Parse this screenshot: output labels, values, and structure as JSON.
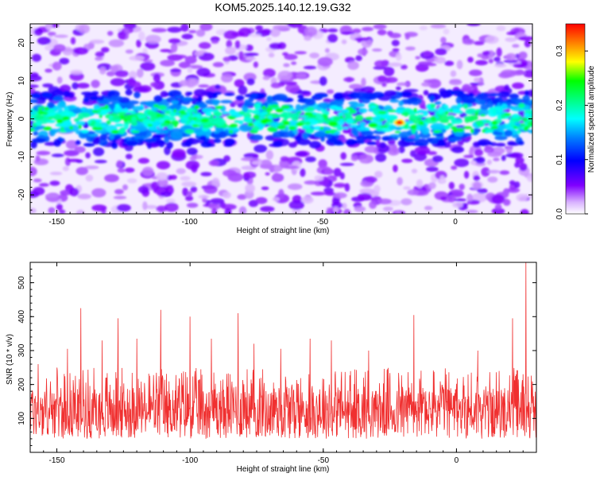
{
  "figure_title": "KOM5.2025.140.12.19.G32",
  "chart_data": [
    {
      "type": "heatmap",
      "title": "KOM5.2025.140.12.19.G32",
      "xlabel": "Height of straight line (km)",
      "ylabel": "Frequency (Hz)",
      "xlim": [
        -160,
        29
      ],
      "ylim": [
        -25,
        25
      ],
      "x_ticks": [
        -150,
        -100,
        -50,
        0
      ],
      "y_ticks": [
        -20,
        -10,
        0,
        10,
        20
      ],
      "colorbar": {
        "label": "Normalized spectral amplitude",
        "range": [
          0.0,
          0.35
        ],
        "ticks": [
          0.0,
          0.1,
          0.2,
          0.3
        ],
        "colormap": [
          "#ffffff",
          "#8000ff",
          "#0000ff",
          "#00ffff",
          "#00ff00",
          "#ffff00",
          "#ff8000",
          "#ff0000"
        ]
      },
      "description_values": {
        "band_center_hz": 0,
        "band_halfwidth_hz": 7,
        "peak_x_km": -21,
        "peak_y_hz": -1,
        "peak_amplitude": 0.35
      },
      "grid": false
    },
    {
      "type": "line",
      "xlabel": "Height of straight line (km)",
      "ylabel": "SNR (10 * v/v)",
      "xlim": [
        -160,
        30
      ],
      "ylim": [
        0,
        560
      ],
      "x_ticks": [
        -150,
        -100,
        -50,
        0
      ],
      "y_ticks": [
        100,
        200,
        300,
        400,
        500
      ],
      "series_color": "#f03030",
      "baseline_range": [
        40,
        250
      ],
      "spikes": [
        {
          "x": -157,
          "y": 260
        },
        {
          "x": -146,
          "y": 305
        },
        {
          "x": -141,
          "y": 425
        },
        {
          "x": -133,
          "y": 330
        },
        {
          "x": -127,
          "y": 395
        },
        {
          "x": -120,
          "y": 335
        },
        {
          "x": -111,
          "y": 420
        },
        {
          "x": -100,
          "y": 400
        },
        {
          "x": -92,
          "y": 335
        },
        {
          "x": -82,
          "y": 410
        },
        {
          "x": -76,
          "y": 320
        },
        {
          "x": -66,
          "y": 305
        },
        {
          "x": -55,
          "y": 335
        },
        {
          "x": -47,
          "y": 330
        },
        {
          "x": -33,
          "y": 300
        },
        {
          "x": -16,
          "y": 405
        },
        {
          "x": 8,
          "y": 300
        },
        {
          "x": 21,
          "y": 395
        },
        {
          "x": 26,
          "y": 560
        }
      ],
      "grid": false
    }
  ]
}
